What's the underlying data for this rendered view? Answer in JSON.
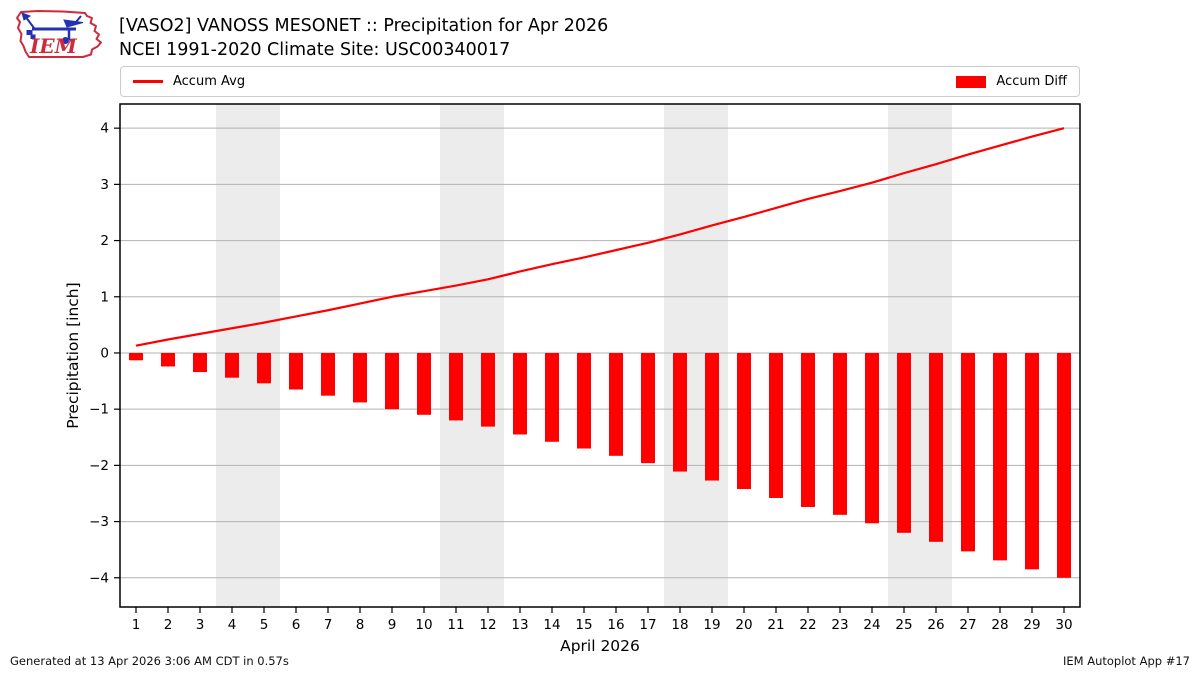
{
  "header": {
    "logo": {
      "text": "IEM",
      "outline_color": "#cf2a3c",
      "instrument_color": "#2432b0"
    },
    "title_line1": "[VASO2] VANOSS MESONET :: Precipitation for Apr 2026",
    "title_line2": "NCEI 1991-2020 Climate Site: USC00340017"
  },
  "legend": {
    "items": [
      {
        "label": "Accum Avg",
        "swatch": "line",
        "color": "#ff0000"
      },
      {
        "label": "Accum Diff",
        "swatch": "rect",
        "color": "#ff0000"
      }
    ]
  },
  "footer": {
    "left": "Generated at 13 Apr 2026 3:06 AM CDT in 0.57s",
    "right": "IEM Autoplot App #17"
  },
  "chart_data": {
    "type": "combo",
    "title": "[VASO2] VANOSS MESONET :: Precipitation for Apr 2026",
    "subtitle": "NCEI 1991-2020 Climate Site: USC00340017",
    "xlabel": "April 2026",
    "ylabel": "Precipitation [inch]",
    "x": [
      1,
      2,
      3,
      4,
      5,
      6,
      7,
      8,
      9,
      10,
      11,
      12,
      13,
      14,
      15,
      16,
      17,
      18,
      19,
      20,
      21,
      22,
      23,
      24,
      25,
      26,
      27,
      28,
      29,
      30
    ],
    "series": [
      {
        "name": "Accum Avg",
        "type": "line",
        "color": "#ff0000",
        "values": [
          0.13,
          0.24,
          0.34,
          0.44,
          0.54,
          0.65,
          0.76,
          0.88,
          1.0,
          1.1,
          1.2,
          1.31,
          1.45,
          1.58,
          1.7,
          1.83,
          1.96,
          2.11,
          2.27,
          2.42,
          2.58,
          2.74,
          2.88,
          3.03,
          3.2,
          3.36,
          3.53,
          3.69,
          3.85,
          4.0
        ]
      },
      {
        "name": "Accum Diff",
        "type": "bar",
        "color": "#ff0000",
        "values": [
          -0.13,
          -0.24,
          -0.34,
          -0.44,
          -0.54,
          -0.65,
          -0.76,
          -0.88,
          -1.0,
          -1.1,
          -1.2,
          -1.31,
          -1.45,
          -1.58,
          -1.7,
          -1.83,
          -1.96,
          -2.11,
          -2.27,
          -2.42,
          -2.58,
          -2.74,
          -2.88,
          -3.03,
          -3.2,
          -3.36,
          -3.53,
          -3.69,
          -3.85,
          -4.0
        ]
      }
    ],
    "xlim": [
      0.5,
      30.5
    ],
    "ylim": [
      -4.52,
      4.43
    ],
    "yticks": [
      -4,
      -3,
      -2,
      -1,
      0,
      1,
      2,
      3,
      4
    ],
    "xticks": [
      1,
      2,
      3,
      4,
      5,
      6,
      7,
      8,
      9,
      10,
      11,
      12,
      13,
      14,
      15,
      16,
      17,
      18,
      19,
      20,
      21,
      22,
      23,
      24,
      25,
      26,
      27,
      28,
      29,
      30
    ],
    "weekend_bands": [
      [
        3.5,
        5.5
      ],
      [
        10.5,
        12.5
      ],
      [
        17.5,
        19.5
      ],
      [
        24.5,
        26.5
      ]
    ],
    "grid": true,
    "legend_position": "top",
    "colors": {
      "grid": "#b3b3b3",
      "band": "#ececec",
      "spine": "#000000",
      "text": "#000000"
    }
  }
}
